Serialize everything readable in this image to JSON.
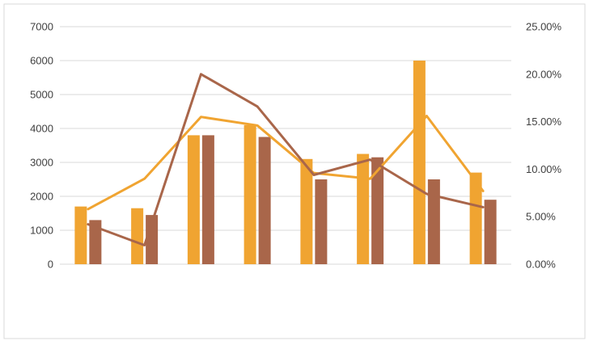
{
  "chart_data": {
    "type": "bar",
    "title": "",
    "xlabel": "",
    "ylabel": "",
    "categories": [
      "",
      "",
      "",
      "",
      "",
      "",
      "",
      ""
    ],
    "grid": true,
    "legend": "none",
    "left_axis": {
      "ylim": [
        0,
        7000
      ],
      "ticks": [
        "0",
        "1000",
        "2000",
        "3000",
        "4000",
        "5000",
        "6000",
        "7000"
      ]
    },
    "right_axis": {
      "ylim": [
        0,
        25
      ],
      "ticks": [
        "0.00%",
        "5.00%",
        "10.00%",
        "15.00%",
        "20.00%",
        "25.00%"
      ]
    },
    "series": [
      {
        "type": "bar",
        "axis": "left",
        "color": "#f0a431",
        "values": [
          1700,
          1650,
          3800,
          4100,
          3100,
          3250,
          6000,
          2700
        ]
      },
      {
        "type": "bar",
        "axis": "left",
        "color": "#a9664a",
        "values": [
          1300,
          1450,
          3800,
          3750,
          2500,
          3150,
          2500,
          1900
        ]
      },
      {
        "type": "line",
        "axis": "right",
        "color": "#f0a431",
        "values": [
          5.8,
          9.0,
          15.5,
          14.6,
          9.6,
          9.0,
          15.6,
          7.7
        ]
      },
      {
        "type": "line",
        "axis": "right",
        "color": "#a9664a",
        "values": [
          4.2,
          2.0,
          20.0,
          16.6,
          9.4,
          11.0,
          7.4,
          6.0
        ]
      }
    ]
  }
}
